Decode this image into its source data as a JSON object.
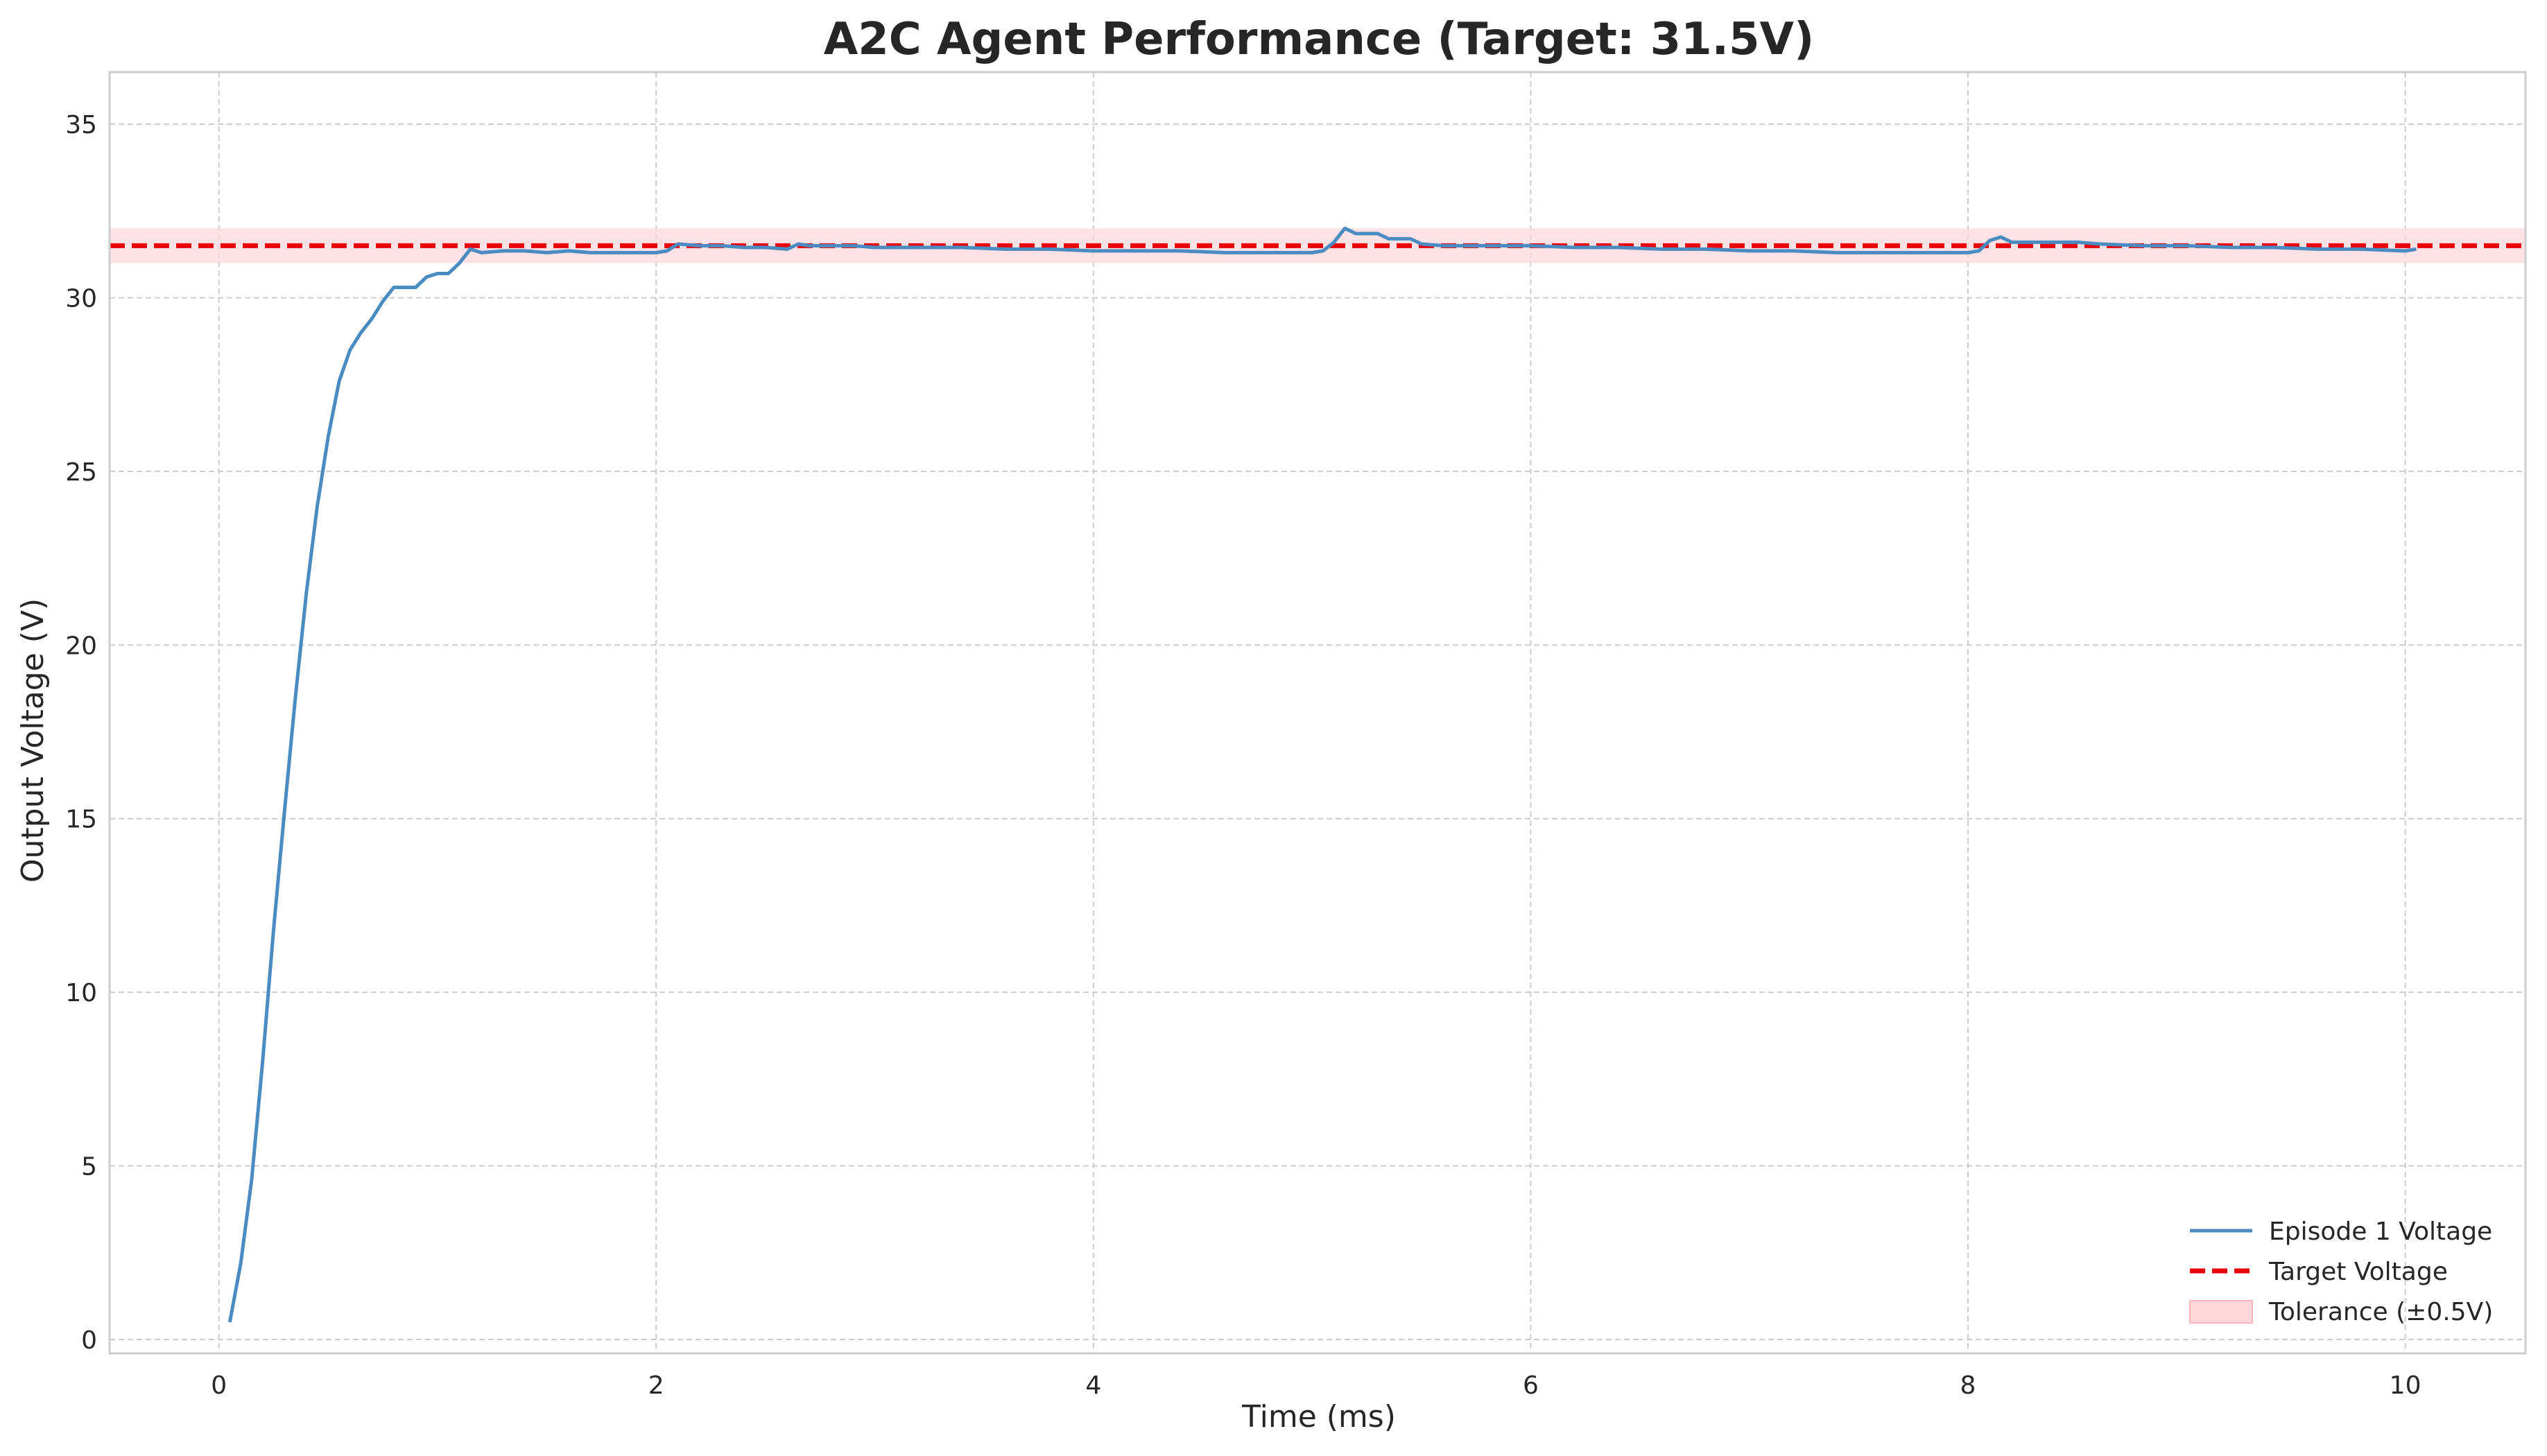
{
  "chart_data": {
    "type": "line",
    "title": "A2C Agent Performance (Target: 31.5V)",
    "xlabel": "Time (ms)",
    "ylabel": "Output Voltage (V)",
    "xlim": [
      -0.5,
      10.55
    ],
    "ylim": [
      -0.4,
      36.5
    ],
    "x_ticks": [
      0,
      2,
      4,
      6,
      8,
      10
    ],
    "y_ticks": [
      0,
      5,
      10,
      15,
      20,
      25,
      30,
      35
    ],
    "grid": true,
    "legend_position": "bottom-right",
    "colors": {
      "voltage": "#4a8bc2",
      "target": "#e8000b",
      "tolerance_fill": "#ffd6da",
      "tolerance_edge": "#f5b5bb"
    },
    "target": {
      "name": "Target Voltage",
      "value": 31.5
    },
    "tolerance": {
      "name": "Tolerance (±0.5V)",
      "lower": 31.0,
      "upper": 32.0
    },
    "series": [
      {
        "name": "Episode 1 Voltage",
        "x": [
          0.05,
          0.1,
          0.15,
          0.2,
          0.25,
          0.3,
          0.35,
          0.4,
          0.45,
          0.5,
          0.55,
          0.6,
          0.65,
          0.7,
          0.75,
          0.8,
          0.85,
          0.9,
          0.95,
          1.0,
          1.05,
          1.1,
          1.15,
          1.2,
          1.3,
          1.4,
          1.5,
          1.6,
          1.7,
          1.8,
          1.9,
          2.0,
          2.05,
          2.1,
          2.2,
          2.3,
          2.4,
          2.5,
          2.6,
          2.65,
          2.7,
          2.8,
          2.9,
          3.0,
          3.2,
          3.4,
          3.6,
          3.8,
          4.0,
          4.2,
          4.4,
          4.6,
          4.8,
          5.0,
          5.05,
          5.1,
          5.15,
          5.2,
          5.25,
          5.3,
          5.35,
          5.4,
          5.45,
          5.5,
          5.6,
          5.8,
          6.0,
          6.2,
          6.4,
          6.6,
          6.8,
          7.0,
          7.2,
          7.4,
          7.6,
          7.8,
          8.0,
          8.05,
          8.1,
          8.15,
          8.2,
          8.3,
          8.4,
          8.5,
          8.6,
          8.8,
          9.0,
          9.2,
          9.4,
          9.6,
          9.8,
          10.0,
          10.05
        ],
        "y": [
          0.5,
          2.2,
          4.6,
          8.0,
          11.8,
          15.2,
          18.5,
          21.5,
          24.0,
          26.0,
          27.6,
          28.5,
          29.0,
          29.4,
          29.9,
          30.3,
          30.3,
          30.3,
          30.6,
          30.7,
          30.7,
          31.0,
          31.4,
          31.3,
          31.35,
          31.35,
          31.3,
          31.35,
          31.3,
          31.3,
          31.3,
          31.3,
          31.35,
          31.55,
          31.5,
          31.5,
          31.45,
          31.45,
          31.4,
          31.55,
          31.5,
          31.5,
          31.5,
          31.45,
          31.45,
          31.45,
          31.4,
          31.4,
          31.35,
          31.35,
          31.35,
          31.3,
          31.3,
          31.3,
          31.35,
          31.6,
          32.0,
          31.85,
          31.85,
          31.85,
          31.7,
          31.7,
          31.7,
          31.55,
          31.5,
          31.5,
          31.5,
          31.45,
          31.45,
          31.4,
          31.4,
          31.35,
          31.35,
          31.3,
          31.3,
          31.3,
          31.3,
          31.35,
          31.65,
          31.75,
          31.6,
          31.6,
          31.6,
          31.6,
          31.55,
          31.5,
          31.5,
          31.45,
          31.45,
          31.4,
          31.4,
          31.35,
          31.4
        ]
      }
    ]
  }
}
